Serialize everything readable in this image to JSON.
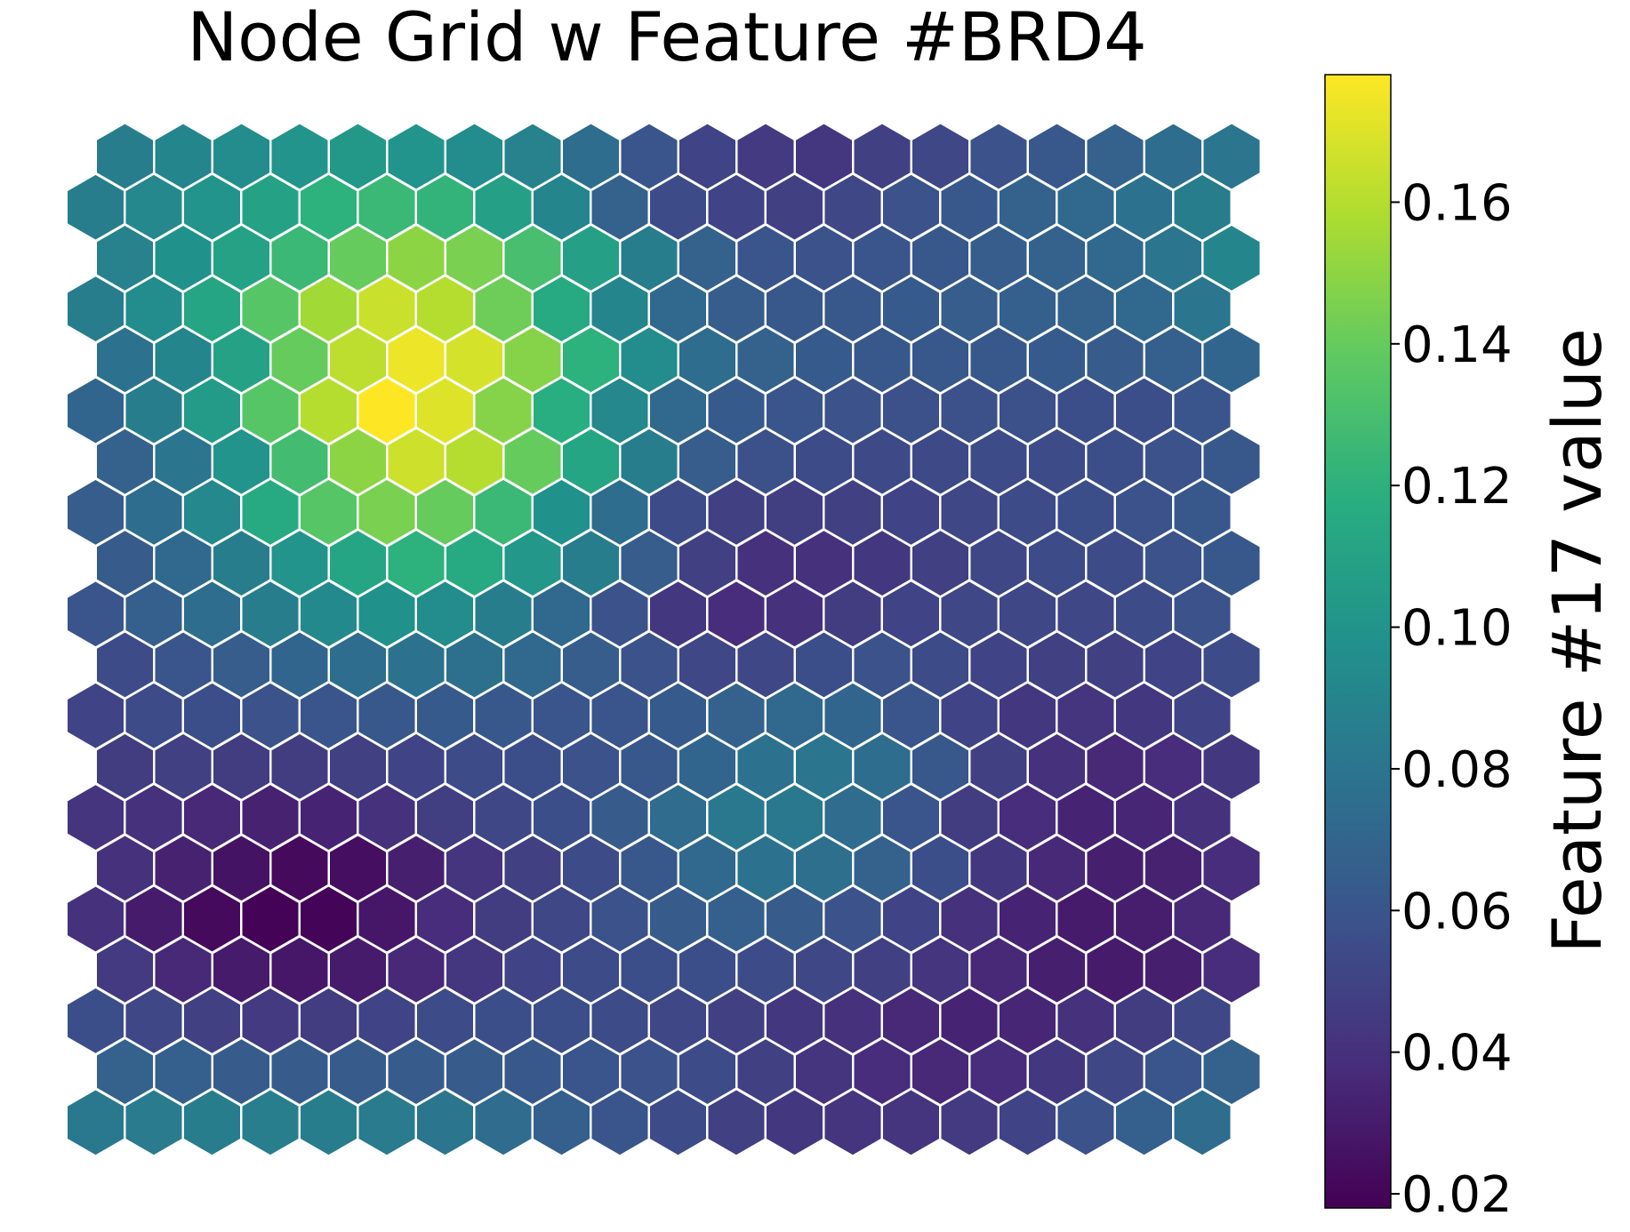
{
  "chart_data": {
    "type": "heatmap",
    "layout": "hexagonal",
    "title": "Node Grid w Feature #BRD4",
    "colorbar": {
      "label": "Feature #17 value",
      "range": [
        0.018,
        0.178
      ],
      "ticks": [
        "0.02",
        "0.04",
        "0.06",
        "0.08",
        "0.10",
        "0.12",
        "0.14",
        "0.16"
      ],
      "colormap": "viridis",
      "placement": "right"
    },
    "rows": 20,
    "cols": 20,
    "values": [
      [
        0.085,
        0.09,
        0.095,
        0.1,
        0.103,
        0.1,
        0.095,
        0.088,
        0.075,
        0.06,
        0.05,
        0.045,
        0.043,
        0.048,
        0.052,
        0.058,
        0.062,
        0.068,
        0.075,
        0.08
      ],
      [
        0.085,
        0.092,
        0.1,
        0.11,
        0.12,
        0.125,
        0.122,
        0.108,
        0.09,
        0.068,
        0.055,
        0.05,
        0.048,
        0.052,
        0.058,
        0.062,
        0.068,
        0.072,
        0.078,
        0.085
      ],
      [
        0.088,
        0.098,
        0.11,
        0.125,
        0.14,
        0.15,
        0.145,
        0.13,
        0.108,
        0.085,
        0.068,
        0.06,
        0.058,
        0.06,
        0.062,
        0.065,
        0.068,
        0.072,
        0.08,
        0.09
      ],
      [
        0.085,
        0.095,
        0.112,
        0.135,
        0.155,
        0.165,
        0.16,
        0.142,
        0.115,
        0.09,
        0.072,
        0.065,
        0.062,
        0.062,
        0.063,
        0.065,
        0.066,
        0.068,
        0.072,
        0.08
      ],
      [
        0.078,
        0.09,
        0.11,
        0.14,
        0.162,
        0.174,
        0.168,
        0.148,
        0.12,
        0.095,
        0.075,
        0.068,
        0.063,
        0.062,
        0.062,
        0.062,
        0.063,
        0.064,
        0.066,
        0.07
      ],
      [
        0.07,
        0.085,
        0.105,
        0.135,
        0.16,
        0.178,
        0.17,
        0.148,
        0.118,
        0.092,
        0.072,
        0.063,
        0.06,
        0.058,
        0.057,
        0.057,
        0.057,
        0.056,
        0.056,
        0.06
      ],
      [
        0.068,
        0.08,
        0.1,
        0.128,
        0.15,
        0.166,
        0.16,
        0.14,
        0.112,
        0.085,
        0.065,
        0.057,
        0.054,
        0.053,
        0.053,
        0.054,
        0.055,
        0.056,
        0.058,
        0.062
      ],
      [
        0.065,
        0.075,
        0.092,
        0.115,
        0.135,
        0.145,
        0.14,
        0.125,
        0.098,
        0.075,
        0.055,
        0.048,
        0.047,
        0.048,
        0.05,
        0.052,
        0.054,
        0.056,
        0.058,
        0.062
      ],
      [
        0.064,
        0.072,
        0.085,
        0.1,
        0.112,
        0.12,
        0.115,
        0.102,
        0.085,
        0.065,
        0.048,
        0.04,
        0.04,
        0.044,
        0.048,
        0.052,
        0.054,
        0.055,
        0.058,
        0.062
      ],
      [
        0.06,
        0.066,
        0.075,
        0.085,
        0.093,
        0.098,
        0.095,
        0.085,
        0.072,
        0.058,
        0.044,
        0.038,
        0.04,
        0.046,
        0.05,
        0.052,
        0.052,
        0.052,
        0.054,
        0.058
      ],
      [
        0.055,
        0.06,
        0.065,
        0.07,
        0.075,
        0.078,
        0.077,
        0.072,
        0.065,
        0.058,
        0.052,
        0.052,
        0.056,
        0.058,
        0.054,
        0.05,
        0.048,
        0.048,
        0.05,
        0.055
      ],
      [
        0.05,
        0.054,
        0.056,
        0.058,
        0.06,
        0.062,
        0.063,
        0.062,
        0.06,
        0.06,
        0.063,
        0.068,
        0.072,
        0.07,
        0.06,
        0.05,
        0.044,
        0.042,
        0.044,
        0.05
      ],
      [
        0.046,
        0.048,
        0.046,
        0.046,
        0.048,
        0.05,
        0.054,
        0.056,
        0.058,
        0.062,
        0.07,
        0.078,
        0.08,
        0.075,
        0.062,
        0.048,
        0.04,
        0.036,
        0.038,
        0.044
      ],
      [
        0.042,
        0.04,
        0.036,
        0.033,
        0.034,
        0.04,
        0.047,
        0.052,
        0.056,
        0.064,
        0.074,
        0.082,
        0.082,
        0.074,
        0.06,
        0.046,
        0.038,
        0.034,
        0.035,
        0.04
      ],
      [
        0.04,
        0.033,
        0.026,
        0.022,
        0.024,
        0.032,
        0.042,
        0.048,
        0.054,
        0.062,
        0.072,
        0.078,
        0.076,
        0.068,
        0.056,
        0.044,
        0.036,
        0.032,
        0.033,
        0.038
      ],
      [
        0.04,
        0.03,
        0.022,
        0.019,
        0.02,
        0.028,
        0.038,
        0.046,
        0.052,
        0.058,
        0.064,
        0.066,
        0.064,
        0.058,
        0.05,
        0.04,
        0.034,
        0.03,
        0.031,
        0.036
      ],
      [
        0.045,
        0.036,
        0.03,
        0.028,
        0.03,
        0.036,
        0.043,
        0.05,
        0.054,
        0.056,
        0.056,
        0.055,
        0.052,
        0.048,
        0.042,
        0.036,
        0.032,
        0.03,
        0.032,
        0.038
      ],
      [
        0.056,
        0.052,
        0.048,
        0.045,
        0.046,
        0.05,
        0.054,
        0.056,
        0.056,
        0.054,
        0.052,
        0.048,
        0.044,
        0.04,
        0.036,
        0.034,
        0.035,
        0.04,
        0.046,
        0.052
      ],
      [
        0.068,
        0.066,
        0.064,
        0.064,
        0.064,
        0.064,
        0.064,
        0.062,
        0.06,
        0.058,
        0.054,
        0.048,
        0.042,
        0.038,
        0.036,
        0.038,
        0.044,
        0.052,
        0.06,
        0.068
      ],
      [
        0.082,
        0.084,
        0.085,
        0.086,
        0.085,
        0.084,
        0.08,
        0.074,
        0.066,
        0.06,
        0.054,
        0.048,
        0.044,
        0.042,
        0.042,
        0.045,
        0.05,
        0.058,
        0.066,
        0.074
      ]
    ]
  }
}
